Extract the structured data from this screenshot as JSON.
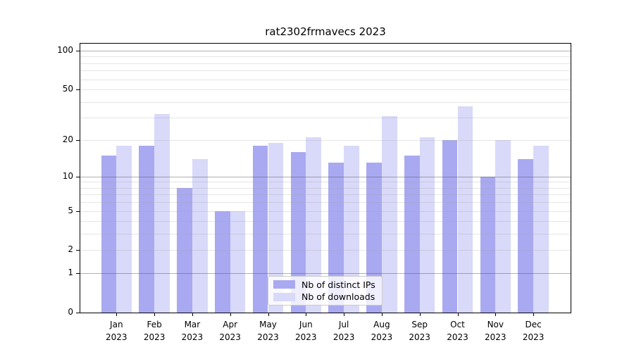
{
  "chart_data": {
    "type": "bar",
    "title": "rat2302frmavecs 2023",
    "categories": [
      "Jan",
      "Feb",
      "Mar",
      "Apr",
      "May",
      "Jun",
      "Jul",
      "Aug",
      "Sep",
      "Oct",
      "Nov",
      "Dec"
    ],
    "category_year": "2023",
    "series": [
      {
        "name": "Nb of distinct IPs",
        "color": "#a9a9f1",
        "values": [
          15,
          18,
          8,
          5,
          18,
          16,
          13,
          13,
          15,
          20,
          10,
          14
        ]
      },
      {
        "name": "Nb of downloads",
        "color": "#d9d9f9",
        "values": [
          18,
          32,
          14,
          5,
          19,
          21,
          18,
          31,
          21,
          37,
          20,
          18
        ]
      }
    ],
    "y_scale": "log10(value+1)",
    "y_tick_labels": [
      100,
      50,
      20,
      10,
      5,
      2,
      1,
      0
    ],
    "y_gridlines_minor": [
      2,
      3,
      4,
      5,
      6,
      7,
      8,
      9,
      20,
      30,
      40,
      50,
      60,
      70,
      80,
      90
    ],
    "y_gridlines_major": [
      1,
      10,
      100
    ],
    "ylim": [
      0,
      112
    ],
    "grid": true,
    "legend_position": "lower center"
  }
}
